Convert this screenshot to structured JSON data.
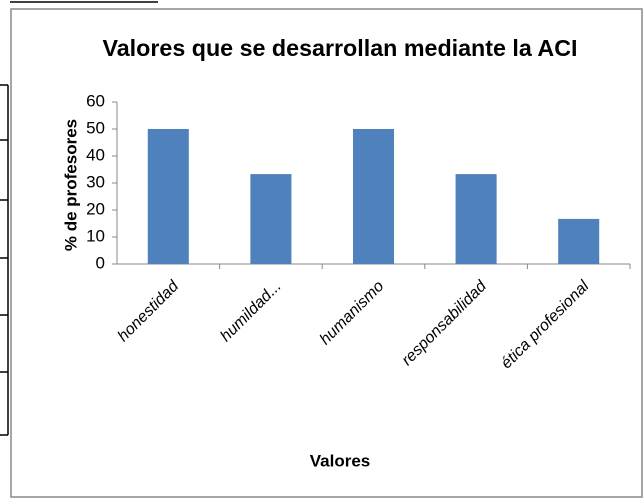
{
  "chart_data": {
    "type": "bar",
    "title": "Valores que se desarrollan mediante la ACI",
    "x_label": "Valores",
    "y_label": "% de profesores",
    "categories": [
      "honestidad",
      "humildad...",
      "humanismo",
      "responsabilidad",
      "ética profesional"
    ],
    "values": [
      50,
      33.3,
      50,
      33.3,
      16.7
    ],
    "color": "#4f81bd",
    "ylim": [
      0,
      60
    ],
    "yticks": [
      0,
      10,
      20,
      30,
      40,
      50,
      60
    ],
    "grid": false
  }
}
